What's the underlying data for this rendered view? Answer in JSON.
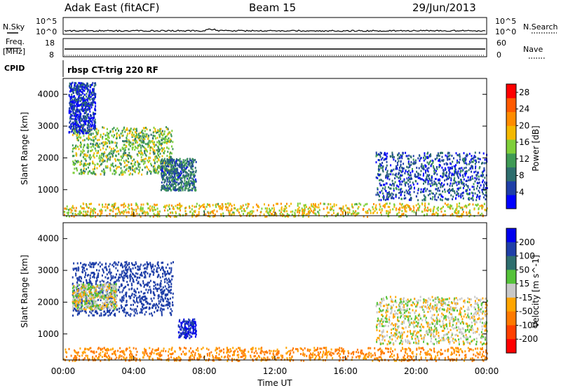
{
  "header": {
    "station": "Adak East (fitACF)",
    "beam": "Beam 15",
    "date": "29/Jun/2013"
  },
  "top_panels": {
    "nsky_label": "N.Sky",
    "nsearch_label": "N.Search",
    "noise_ticks_left": [
      "10^5",
      "10^0"
    ],
    "noise_ticks_right": [
      "10^5",
      "10^0"
    ],
    "freq_label": "Freq.",
    "freq_unit": "[MHz]",
    "freq_ticks": [
      "18",
      "8"
    ],
    "nave_label": "Nave",
    "nave_ticks": [
      "60",
      "0"
    ],
    "cpid_label": "CPID",
    "cpid_text": "rbsp CT-trig 220 RF"
  },
  "chart_data": [
    {
      "type": "heatmap",
      "name": "power",
      "ylabel": "Slant Range [km]",
      "xlabel": "",
      "y_ticks": [
        1000,
        2000,
        3000,
        4000
      ],
      "ylim": [
        180,
        4500
      ],
      "xlim": [
        0,
        24
      ],
      "colorbar": {
        "label": "Power [dB]",
        "ticks": [
          4,
          8,
          12,
          16,
          20,
          24,
          28
        ],
        "range": [
          0,
          30
        ],
        "colors": [
          "#0000ff",
          "#1f3fa8",
          "#2e6e6e",
          "#3f9a55",
          "#7fcf3a",
          "#f4b800",
          "#ff8c00",
          "#ff5a00",
          "#ff0000"
        ]
      },
      "echo_regions": [
        {
          "t0": 0.5,
          "t1": 6.2,
          "r0": 1500,
          "r1": 3000,
          "value": 14
        },
        {
          "t0": 5.5,
          "t1": 7.5,
          "r0": 1000,
          "r1": 2000,
          "value": 8
        },
        {
          "t0": 0.3,
          "t1": 1.8,
          "r0": 2800,
          "r1": 4400,
          "value": 4
        },
        {
          "t0": 17.7,
          "t1": 24,
          "r0": 700,
          "r1": 2200,
          "value": 6
        },
        {
          "t0": 0,
          "t1": 24,
          "r0": 180,
          "r1": 600,
          "value": 18
        }
      ]
    },
    {
      "type": "heatmap",
      "name": "velocity",
      "ylabel": "Slant Range [km]",
      "xlabel": "Time UT",
      "x_ticks": [
        "00:00",
        "04:00",
        "08:00",
        "12:00",
        "16:00",
        "20:00",
        "00:00"
      ],
      "y_ticks": [
        1000,
        2000,
        3000,
        4000
      ],
      "ylim": [
        180,
        4500
      ],
      "xlim": [
        0,
        24
      ],
      "colorbar": {
        "label": "Velocity [m s^-1]",
        "ticks": [
          200,
          100,
          50,
          15,
          -15,
          -50,
          -100,
          -200
        ],
        "colors": [
          "#0000ee",
          "#1f3fa8",
          "#2e6e6e",
          "#55c23a",
          "#c8c8c8",
          "#ffa500",
          "#ff7a00",
          "#ff4000",
          "#ff0000"
        ]
      },
      "echo_regions": [
        {
          "t0": 0.5,
          "t1": 6.2,
          "r0": 1600,
          "r1": 3300,
          "value": 150
        },
        {
          "t0": 0.5,
          "t1": 3.0,
          "r0": 1800,
          "r1": 2600,
          "value": 0
        },
        {
          "t0": 6.5,
          "t1": 7.5,
          "r0": 900,
          "r1": 1500,
          "value": 200
        },
        {
          "t0": 17.7,
          "t1": 24,
          "r0": 700,
          "r1": 2200,
          "value": 0
        },
        {
          "t0": 0,
          "t1": 24,
          "r0": 180,
          "r1": 600,
          "value": -60
        }
      ]
    }
  ]
}
